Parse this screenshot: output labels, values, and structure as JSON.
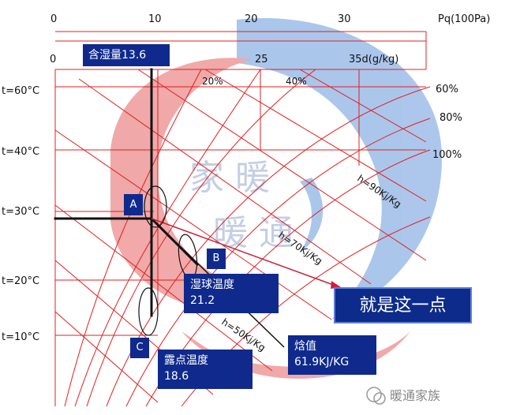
{
  "watermark": {
    "text_top": "家 暖",
    "text_bottom": "暖 通",
    "footer": "暖通家族",
    "swirl_red": "#e57373",
    "swirl_blue": "#8ab0e2"
  },
  "top_axis": {
    "ticks": [
      "0",
      "10",
      "20",
      "30"
    ],
    "unit": "Pq(100Pa)"
  },
  "d_axis": {
    "ticks": [
      "0",
      "25",
      "35d(g/kg)"
    ]
  },
  "moisture_label": "含湿量13.6",
  "temperature_labels": [
    "t=60°C",
    "t=40°C",
    "t=30°C",
    "t=20°C",
    "t=10°C"
  ],
  "rh_labels": [
    "20%",
    "40%",
    "60%",
    "80%",
    "100%"
  ],
  "enthalpy_labels": [
    "h=90Kj/Kg",
    "h=70Kj/Kg",
    "h=50Kj/Kg"
  ],
  "points": {
    "a": "A",
    "b": "B",
    "c": "C"
  },
  "wet_bulb": {
    "title": "湿球温度",
    "value": "21.2"
  },
  "dew_point": {
    "title": "露点温度",
    "value": "18.6"
  },
  "enthalpy": {
    "title": "焓值",
    "value": "61.9KJ/KG"
  },
  "callout": "就是这一点",
  "colors": {
    "grid_red": "#e02020",
    "box_blue": "#0f2a8c",
    "arrow_red": "#cc1f3a"
  }
}
